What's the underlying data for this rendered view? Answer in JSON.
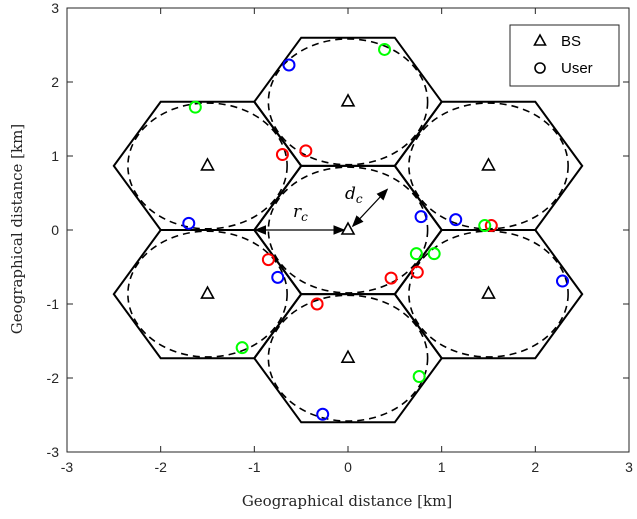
{
  "chart_data": {
    "type": "scatter",
    "title": "",
    "xlabel": "Geographical distance [km]",
    "ylabel": "Geographical distance [km]",
    "xlim": [
      -3,
      3
    ],
    "ylim": [
      -3,
      3
    ],
    "xticks": [
      "-3",
      "-2",
      "-1",
      "0",
      "1",
      "2",
      "3"
    ],
    "yticks": [
      "-3",
      "-2",
      "-1",
      "0",
      "1",
      "2",
      "3"
    ],
    "grid": false,
    "legend_position": "top-right",
    "legend": [
      {
        "name": "BS",
        "marker": "triangle"
      },
      {
        "name": "User",
        "marker": "circle"
      }
    ],
    "colors": {
      "axis": "#262626",
      "hex": "#000000",
      "red": "#ff0000",
      "blue": "#0000ff",
      "green": "#00ff00"
    },
    "cell_radius_km": 1,
    "base_stations": [
      {
        "x": 0,
        "y": 0
      },
      {
        "x": 0,
        "y": 1.732
      },
      {
        "x": 0,
        "y": -1.732
      },
      {
        "x": 1.5,
        "y": 0.866
      },
      {
        "x": 1.5,
        "y": -0.866
      },
      {
        "x": -1.5,
        "y": 0.866
      },
      {
        "x": -1.5,
        "y": -0.866
      }
    ],
    "dashed_circle_radius_km": 0.85,
    "users": [
      {
        "x": -0.7,
        "y": 1.02,
        "color": "red"
      },
      {
        "x": -0.45,
        "y": 1.07,
        "color": "red"
      },
      {
        "x": -0.85,
        "y": -0.4,
        "color": "red"
      },
      {
        "x": -0.33,
        "y": -1.0,
        "color": "red"
      },
      {
        "x": 0.46,
        "y": -0.65,
        "color": "red"
      },
      {
        "x": 0.74,
        "y": -0.57,
        "color": "red"
      },
      {
        "x": 1.53,
        "y": 0.06,
        "color": "red"
      },
      {
        "x": -0.63,
        "y": 2.23,
        "color": "blue"
      },
      {
        "x": -1.7,
        "y": 0.09,
        "color": "blue"
      },
      {
        "x": -0.75,
        "y": -0.64,
        "color": "blue"
      },
      {
        "x": 0.78,
        "y": 0.18,
        "color": "blue"
      },
      {
        "x": 1.15,
        "y": 0.14,
        "color": "blue"
      },
      {
        "x": 2.29,
        "y": -0.69,
        "color": "blue"
      },
      {
        "x": -0.27,
        "y": -2.49,
        "color": "blue"
      },
      {
        "x": 0.39,
        "y": 2.44,
        "color": "green"
      },
      {
        "x": -1.63,
        "y": 1.66,
        "color": "green"
      },
      {
        "x": 0.73,
        "y": -0.32,
        "color": "green"
      },
      {
        "x": 0.92,
        "y": -0.32,
        "color": "green"
      },
      {
        "x": 1.46,
        "y": 0.06,
        "color": "green"
      },
      {
        "x": -1.13,
        "y": -1.59,
        "color": "green"
      },
      {
        "x": 0.76,
        "y": -1.98,
        "color": "green"
      }
    ],
    "annotations": {
      "rc": {
        "base": "r",
        "sub": "c"
      },
      "dc": {
        "base": "d",
        "sub": "c"
      }
    }
  }
}
